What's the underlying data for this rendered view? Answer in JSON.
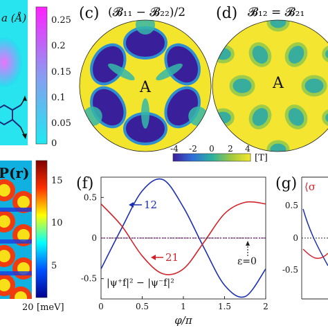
{
  "panels": {
    "a_partial": {
      "axis_label": "a (Å)",
      "colorbar_ticks": [
        "0.25",
        "0.2",
        "0.15",
        "0.1",
        "0.05",
        "0"
      ]
    },
    "c": {
      "letter": "(c)",
      "title": "(𝓑₁₁ − 𝓑₂₂)/2",
      "center_label": "A"
    },
    "d": {
      "letter": "(d)",
      "title": "𝓑₁₂ = 𝓑₂₁",
      "center_label": "A"
    },
    "colorbar_cd": {
      "ticks": [
        "-4",
        "-2",
        "0",
        "2",
        "4"
      ],
      "unit": "[T]"
    },
    "e_partial": {
      "title_fragment": "P(r)",
      "colorbar_ticks": [
        "15",
        "10",
        "5"
      ],
      "x_tick": "20",
      "unit": "[meV]"
    },
    "f": {
      "letter": "(f)",
      "curve_label_blue": "12",
      "curve_label_red": "21",
      "dotted_label": "ε=0",
      "formula": "|ψ⁺f|² − |ψ⁻f|²",
      "xlabel": "φ/π"
    },
    "g_partial": {
      "letter": "(g)",
      "title_fragment": "⟨σ"
    }
  },
  "chart_data": {
    "type": "line",
    "title": "(f)",
    "xlabel": "φ/π",
    "ylabel": "",
    "xlim": [
      0,
      2
    ],
    "ylim": [
      -0.75,
      0.75
    ],
    "x_ticks": [
      "0",
      "0.5",
      "1",
      "1.5",
      "2"
    ],
    "y_ticks": [
      "0.5",
      "0",
      "-0.5"
    ],
    "x": [
      0,
      0.25,
      0.5,
      0.75,
      1.0,
      1.25,
      1.5,
      1.75,
      2.0
    ],
    "series": [
      {
        "name": "12",
        "color": "#1c2fb0",
        "values": [
          -0.38,
          0.12,
          0.58,
          0.72,
          0.38,
          -0.12,
          -0.58,
          -0.72,
          -0.38
        ]
      },
      {
        "name": "21",
        "color": "#d2232a",
        "values": [
          0.42,
          0.15,
          -0.22,
          -0.44,
          -0.38,
          -0.05,
          0.3,
          0.44,
          0.42
        ]
      },
      {
        "name": "ε=0",
        "color": "#444444",
        "values": [
          0,
          0,
          0,
          0,
          0,
          0,
          0,
          0,
          0
        ]
      }
    ]
  }
}
